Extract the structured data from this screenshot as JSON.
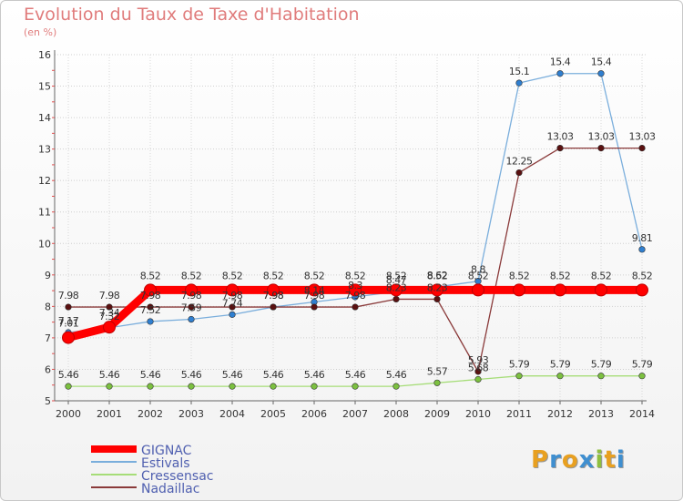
{
  "header": {
    "title": "Evolution du Taux de Taxe d'Habitation",
    "subtitle": "(en %)"
  },
  "logo": {
    "letters": [
      "P",
      "r",
      "o",
      "x",
      "i",
      "t",
      "i"
    ],
    "colors": [
      "#e8a020",
      "#3f8fd0",
      "#e8a020",
      "#3f8fd0",
      "#8fbf3f",
      "#e8a020",
      "#3f8fd0"
    ]
  },
  "chart_data": {
    "type": "line",
    "title": "Evolution du Taux de Taxe d'Habitation",
    "ylabel": "(en %)",
    "xlabel": "",
    "ylim": [
      5,
      16
    ],
    "y_ticks": [
      "5",
      "6",
      "7",
      "8",
      "9",
      "10",
      "11",
      "12",
      "13",
      "14",
      "15",
      "16"
    ],
    "x": [
      "2000",
      "2001",
      "2002",
      "2003",
      "2004",
      "2005",
      "2006",
      "2007",
      "2008",
      "2009",
      "2010",
      "2011",
      "2012",
      "2013",
      "2014"
    ],
    "legend_position": "bottom-left",
    "series": [
      {
        "name": "GIGNAC",
        "color": "#ff0000",
        "marker_color": "#ff0000",
        "values": [
          7.01,
          7.34,
          8.52,
          8.52,
          8.52,
          8.52,
          8.52,
          8.52,
          8.52,
          8.52,
          8.52,
          8.52,
          8.52,
          8.52,
          8.52
        ],
        "labels": [
          "7.01",
          "7.34",
          "8.52",
          "8.52",
          "8.52",
          "8.52",
          "8.52",
          "8.52",
          "8.52",
          "8.52",
          "8.52",
          "8.52",
          "8.52",
          "8.52",
          "8.52"
        ]
      },
      {
        "name": "Estivals",
        "color": "#7aaedc",
        "marker_color": "#2f7fd0",
        "values": [
          7.17,
          7.32,
          7.52,
          7.59,
          7.74,
          7.98,
          8.14,
          8.3,
          8.47,
          8.62,
          8.8,
          15.1,
          15.4,
          15.4,
          9.81
        ],
        "labels": [
          "7.17",
          "7.32",
          "7.52",
          "7.59",
          "7.74",
          "7.98",
          "8.14",
          "8.3",
          "8.47",
          "8.62",
          "8.8",
          "15.1",
          "15.4",
          "15.4",
          "9.81"
        ]
      },
      {
        "name": "Cressensac",
        "color": "#a6dd78",
        "marker_color": "#7cc040",
        "values": [
          5.46,
          5.46,
          5.46,
          5.46,
          5.46,
          5.46,
          5.46,
          5.46,
          5.46,
          5.57,
          5.68,
          5.79,
          5.79,
          5.79,
          5.79
        ],
        "labels": [
          "5.46",
          "5.46",
          "5.46",
          "5.46",
          "5.46",
          "5.46",
          "5.46",
          "5.46",
          "5.46",
          "5.57",
          "5.68",
          "5.79",
          "5.79",
          "5.79",
          "5.79"
        ]
      },
      {
        "name": "Nadaillac",
        "color": "#8a3a3a",
        "marker_color": "#5a1010",
        "values": [
          7.98,
          7.98,
          7.98,
          7.98,
          7.98,
          7.98,
          7.98,
          7.98,
          8.23,
          8.23,
          5.93,
          12.25,
          13.03,
          13.03,
          13.03
        ],
        "labels": [
          "7.98",
          "7.98",
          "7.98",
          "7.98",
          "7.98",
          "7.98",
          "7.98",
          "7.98",
          "8.23",
          "8.23",
          "5.93",
          "12.25",
          "13.03",
          "13.03",
          "13.03"
        ]
      }
    ]
  }
}
